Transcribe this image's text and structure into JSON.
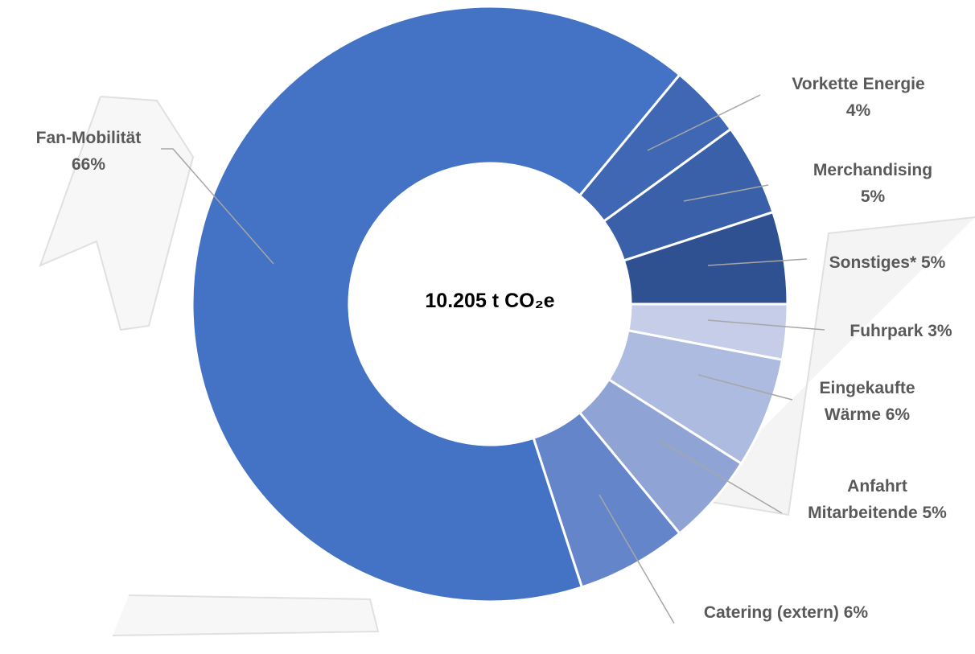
{
  "chart_data": {
    "type": "donut",
    "center_label": "10.205 t CO₂e",
    "categories": [
      "Fuhrpark",
      "Eingekaufte Wärme",
      "Anfahrt Mitarbeitende",
      "Catering (extern)",
      "Fan-Mobilität",
      "Vorkette Energie",
      "Merchandising",
      "Sonstiges*"
    ],
    "values": [
      3,
      6,
      5,
      6,
      66,
      4,
      5,
      5
    ],
    "value_labels": [
      "3%",
      "6%",
      "5%",
      "6%",
      "66%",
      "4%",
      "5%",
      "5%"
    ],
    "colors": [
      "#c5cde8",
      "#adbbe0",
      "#8fa3d5",
      "#6585cb",
      "#4472c4",
      "#3f67b3",
      "#3960a8",
      "#2f5091"
    ]
  }
}
